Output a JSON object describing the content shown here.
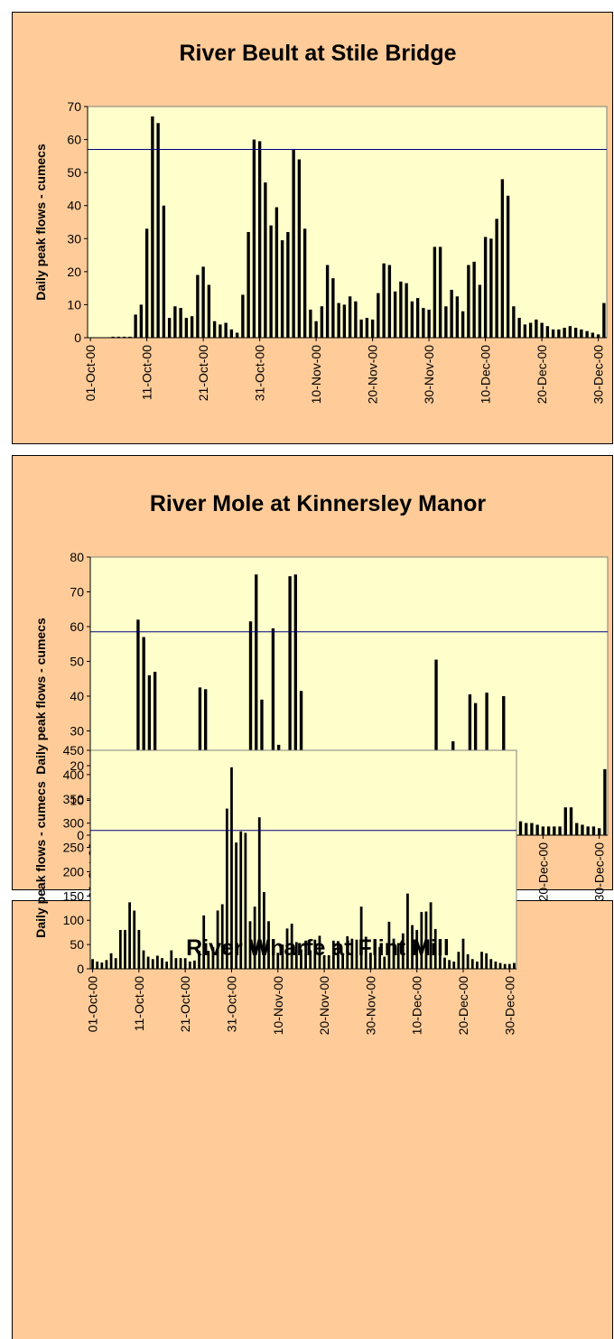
{
  "chart_data": [
    {
      "type": "bar",
      "title": "River Beult at Stile Bridge",
      "y_label": "Daily peak flows - cumecs",
      "color": "#000000",
      "reference_line": 57,
      "reference_color": "#000080",
      "categories": [
        "01-Oct-00",
        null,
        null,
        null,
        null,
        null,
        null,
        null,
        null,
        null,
        "11-Oct-00",
        null,
        null,
        null,
        null,
        null,
        null,
        null,
        null,
        null,
        "21-Oct-00",
        null,
        null,
        null,
        null,
        null,
        null,
        null,
        null,
        null,
        "31-Oct-00",
        null,
        null,
        null,
        null,
        null,
        null,
        null,
        null,
        null,
        "10-Nov-00",
        null,
        null,
        null,
        null,
        null,
        null,
        null,
        null,
        null,
        "20-Nov-00",
        null,
        null,
        null,
        null,
        null,
        null,
        null,
        null,
        null,
        "30-Nov-00",
        null,
        null,
        null,
        null,
        null,
        null,
        null,
        null,
        null,
        "10-Dec-00",
        null,
        null,
        null,
        null,
        null,
        null,
        null,
        null,
        null,
        "20-Dec-00",
        null,
        null,
        null,
        null,
        null,
        null,
        null,
        null,
        null,
        "30-Dec-00",
        null
      ],
      "values": [
        0,
        0,
        0,
        0,
        0.3,
        0.3,
        0.3,
        0.3,
        7,
        10,
        33,
        67,
        65,
        40,
        6,
        9.5,
        9,
        6,
        6.5,
        19,
        21.5,
        16,
        5,
        4,
        4.5,
        2.5,
        1.5,
        13,
        32,
        60,
        59.5,
        47,
        34,
        39.5,
        29.5,
        32,
        57,
        54,
        33,
        8.5,
        5,
        9.5,
        22,
        18,
        10.5,
        10,
        12.5,
        11,
        5.5,
        6,
        5.5,
        13.5,
        22.5,
        22,
        14,
        17,
        16.5,
        11,
        12,
        9,
        8.5,
        27.5,
        27.5,
        9.5,
        14.5,
        12.5,
        8,
        22,
        23,
        16,
        30.5,
        30,
        36,
        48,
        43,
        9.5,
        6,
        4,
        4.5,
        5.5,
        4.5,
        3.5,
        2.5,
        2.5,
        3,
        3.5,
        3,
        2.5,
        2,
        1.5,
        1,
        10.5
      ],
      "ylim": [
        0,
        70
      ],
      "yticks": [
        0,
        10,
        20,
        30,
        40,
        50,
        60,
        70
      ]
    },
    {
      "type": "bar",
      "title": "River Mole at Kinnersley Manor",
      "y_label": "Daily peak flows - cumecs",
      "color": "#000000",
      "reference_line": 58.5,
      "reference_color": "#000080",
      "categories": [
        "01-Oct-00",
        null,
        null,
        null,
        null,
        null,
        null,
        null,
        null,
        null,
        "11-Oct-00",
        null,
        null,
        null,
        null,
        null,
        null,
        null,
        null,
        null,
        "21-Oct-00",
        null,
        null,
        null,
        null,
        null,
        null,
        null,
        null,
        null,
        "31-Oct-00",
        null,
        null,
        null,
        null,
        null,
        null,
        null,
        null,
        null,
        "10-Nov-00",
        null,
        null,
        null,
        null,
        null,
        null,
        null,
        null,
        null,
        "20-Nov-00",
        null,
        null,
        null,
        null,
        null,
        null,
        null,
        null,
        null,
        "30-Nov-00",
        null,
        null,
        null,
        null,
        null,
        null,
        null,
        null,
        null,
        "10-Dec-00",
        null,
        null,
        null,
        null,
        null,
        null,
        null,
        null,
        null,
        "20-Dec-00",
        null,
        null,
        null,
        null,
        null,
        null,
        null,
        null,
        null,
        "30-Dec-00",
        null
      ],
      "values": [
        5,
        5,
        2,
        1.5,
        1.5,
        1,
        6,
        4,
        62,
        57,
        46,
        47,
        14.5,
        3.5,
        3,
        6.5,
        3.5,
        3.5,
        3.5,
        42.5,
        42,
        9,
        4,
        3.5,
        3,
        2.5,
        2.5,
        19.5,
        61.5,
        75,
        39,
        9.5,
        59.5,
        26,
        6.5,
        74.5,
        75,
        41.5,
        13,
        5.5,
        3.5,
        19.5,
        23,
        8.5,
        4,
        4,
        15,
        7,
        4,
        3.5,
        3,
        11,
        14,
        16.5,
        11,
        17,
        14,
        14,
        14,
        12,
        15.5,
        50.5,
        20,
        8.5,
        27,
        13.5,
        9,
        40.5,
        38,
        18,
        41,
        21,
        21.5,
        40,
        15,
        7,
        4,
        3.5,
        3.5,
        3,
        2.5,
        2.5,
        2.5,
        2.5,
        8,
        8,
        3.5,
        3,
        2.5,
        2.5,
        2,
        19
      ],
      "ylim": [
        0,
        80
      ],
      "yticks": [
        0,
        10,
        20,
        30,
        40,
        50,
        60,
        70,
        80
      ]
    },
    {
      "type": "bar",
      "title": "River Wharfe at Flint Mill",
      "y_label": "Daily peak flows - cumecs",
      "color": "#000000",
      "reference_line": 285,
      "reference_color": "#000080",
      "categories": [
        "01-Oct-00",
        null,
        null,
        null,
        null,
        null,
        null,
        null,
        null,
        null,
        "11-Oct-00",
        null,
        null,
        null,
        null,
        null,
        null,
        null,
        null,
        null,
        "21-Oct-00",
        null,
        null,
        null,
        null,
        null,
        null,
        null,
        null,
        null,
        "31-Oct-00",
        null,
        null,
        null,
        null,
        null,
        null,
        null,
        null,
        null,
        "10-Nov-00",
        null,
        null,
        null,
        null,
        null,
        null,
        null,
        null,
        null,
        "20-Nov-00",
        null,
        null,
        null,
        null,
        null,
        null,
        null,
        null,
        null,
        "30-Nov-00",
        null,
        null,
        null,
        null,
        null,
        null,
        null,
        null,
        null,
        "10-Dec-00",
        null,
        null,
        null,
        null,
        null,
        null,
        null,
        null,
        null,
        "20-Dec-00",
        null,
        null,
        null,
        null,
        null,
        null,
        null,
        null,
        null,
        "30-Dec-00",
        null
      ],
      "values": [
        20,
        15,
        13,
        18,
        32,
        22,
        80,
        80,
        137,
        120,
        80,
        38,
        25,
        20,
        27,
        22,
        15,
        38,
        22,
        22,
        22,
        15,
        17,
        37,
        110,
        37,
        45,
        120,
        133,
        330,
        415,
        260,
        283,
        280,
        98,
        128,
        312,
        158,
        98,
        55,
        33,
        50,
        83,
        93,
        55,
        40,
        58,
        38,
        60,
        68,
        28,
        28,
        58,
        57,
        30,
        67,
        62,
        60,
        128,
        66,
        33,
        58,
        45,
        25,
        97,
        62,
        53,
        73,
        155,
        90,
        80,
        117,
        118,
        137,
        82,
        38,
        23,
        18,
        15,
        35,
        62,
        30,
        20,
        15,
        35,
        32,
        20,
        15,
        12,
        10,
        10,
        12
      ],
      "ylim": [
        0,
        450
      ],
      "yticks": [
        0,
        50,
        100,
        150,
        200,
        250,
        300,
        350,
        400,
        450
      ]
    }
  ]
}
